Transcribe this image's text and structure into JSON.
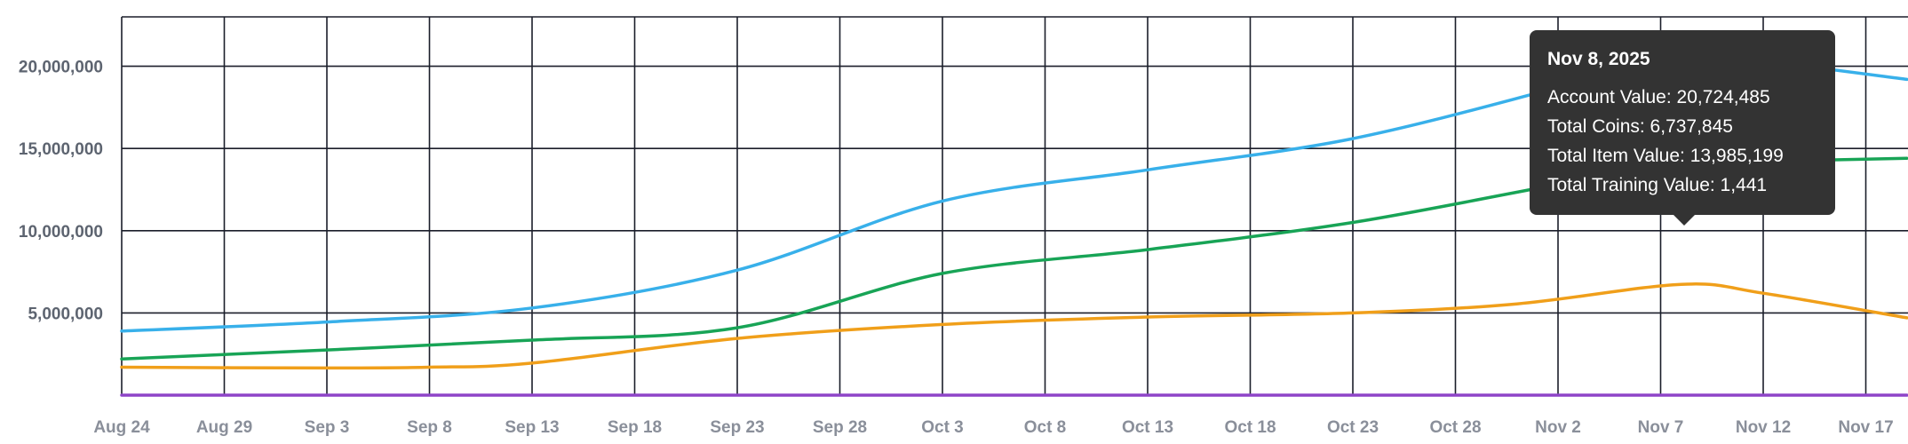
{
  "chart_data": {
    "type": "line",
    "title": "",
    "xlabel": "",
    "ylabel": "",
    "grid": true,
    "x_start": "Aug 24",
    "x_tick_labels": [
      "Aug 24",
      "Aug 29",
      "Sep 3",
      "Sep 8",
      "Sep 13",
      "Sep 18",
      "Sep 23",
      "Sep 28",
      "Oct 3",
      "Oct 8",
      "Oct 13",
      "Oct 18",
      "Oct 23",
      "Oct 28",
      "Nov 2",
      "Nov 7",
      "Nov 12",
      "Nov 17"
    ],
    "y_tick_labels": [
      "5,000,000",
      "10,000,000",
      "15,000,000",
      "20,000,000"
    ],
    "y_tick_values": [
      5000000,
      10000000,
      15000000,
      20000000
    ],
    "ylim": [
      0,
      23000000
    ],
    "series": [
      {
        "color": "#38b0ea",
        "points": [
          [
            "Aug 24",
            3900000
          ],
          [
            "Sep 3",
            4450000
          ],
          [
            "Sep 13",
            5300000
          ],
          [
            "Sep 23",
            7600000
          ],
          [
            "Oct 3",
            11800000
          ],
          [
            "Oct 13",
            13700000
          ],
          [
            "Oct 23",
            15600000
          ],
          [
            "Nov 2",
            18700000
          ],
          [
            "Nov 8",
            20724485
          ],
          [
            "Nov 12",
            20300000
          ],
          [
            "Nov 19",
            19200000
          ]
        ]
      },
      {
        "color": "#18a456",
        "points": [
          [
            "Aug 24",
            2200000
          ],
          [
            "Sep 3",
            2750000
          ],
          [
            "Sep 13",
            3350000
          ],
          [
            "Sep 23",
            4100000
          ],
          [
            "Oct 3",
            7400000
          ],
          [
            "Oct 13",
            8850000
          ],
          [
            "Oct 23",
            10500000
          ],
          [
            "Nov 2",
            12800000
          ],
          [
            "Nov 8",
            13985199
          ],
          [
            "Nov 12",
            14200000
          ],
          [
            "Nov 19",
            14400000
          ]
        ]
      },
      {
        "color": "#f09f1a",
        "points": [
          [
            "Aug 24",
            1700000
          ],
          [
            "Sep 3",
            1650000
          ],
          [
            "Sep 8",
            1700000
          ],
          [
            "Sep 13",
            1950000
          ],
          [
            "Sep 23",
            3450000
          ],
          [
            "Oct 3",
            4300000
          ],
          [
            "Oct 13",
            4750000
          ],
          [
            "Oct 23",
            5000000
          ],
          [
            "Oct 31",
            5550000
          ],
          [
            "Nov 8",
            6737845
          ],
          [
            "Nov 12",
            6200000
          ],
          [
            "Nov 19",
            4700000
          ]
        ]
      },
      {
        "color": "#8e44c8",
        "points": [
          [
            "Aug 24",
            1441
          ],
          [
            "Nov 8",
            1441
          ],
          [
            "Nov 19",
            1441
          ]
        ]
      }
    ],
    "tooltip": {
      "title": "Nov 8, 2025",
      "rows": [
        "Account Value: 20,724,485",
        "Total Coins: 6,737,845",
        "Total Item Value: 13,985,199",
        "Total Training Value: 1,441"
      ]
    }
  },
  "colors": {
    "grid": "#1b1e2a",
    "tooltip_bg": "#333333"
  }
}
